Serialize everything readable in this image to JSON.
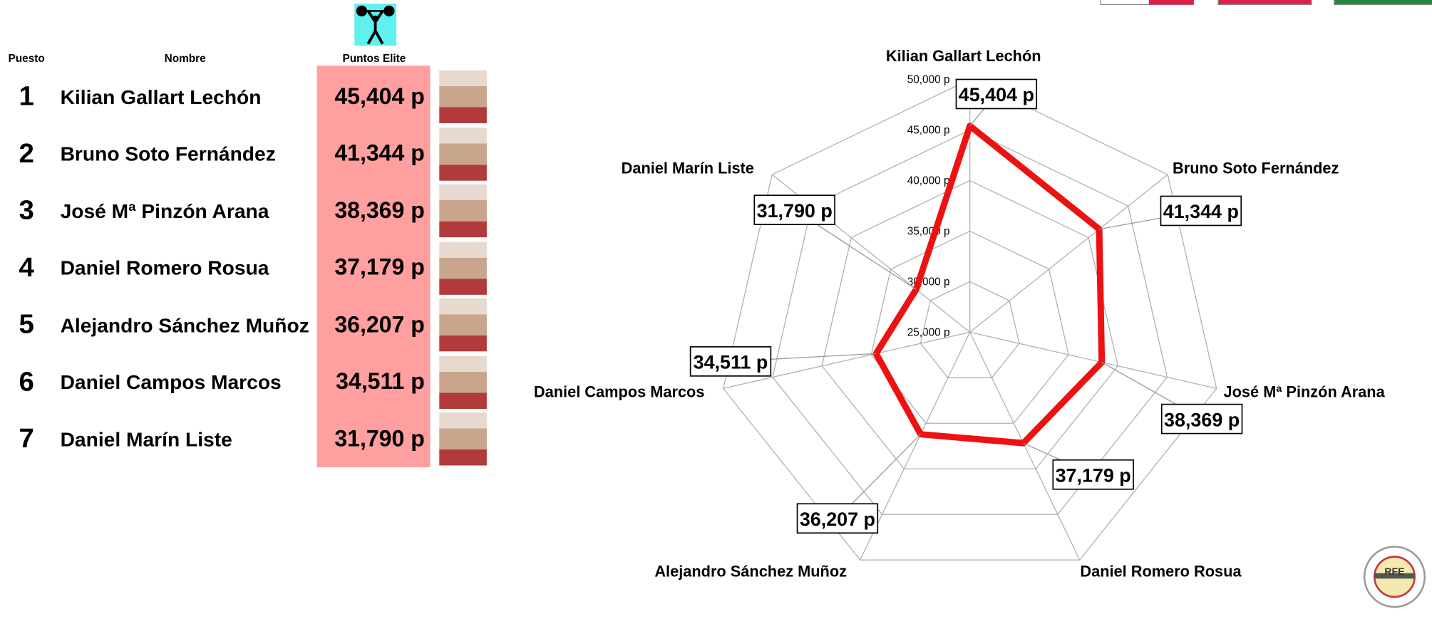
{
  "table": {
    "headers": [
      "Puesto",
      "Nombre",
      "Puntos Elite"
    ],
    "rows": [
      [
        1,
        "Kilian Gallart Lechón",
        "45,404 p"
      ],
      [
        2,
        "Bruno Soto Fernández",
        "41,344 p"
      ],
      [
        3,
        "José Mª Pinzón Arana",
        "38,369 p"
      ],
      [
        4,
        "Daniel Romero Rosua",
        "37,179 p"
      ],
      [
        5,
        "Alejandro Sánchez Muñoz",
        "36,207 p"
      ],
      [
        6,
        "Daniel Campos Marcos",
        "34,511 p"
      ],
      [
        7,
        "Daniel Marín Liste",
        "31,790 p"
      ]
    ]
  },
  "chart_data": {
    "type": "radar",
    "categories": [
      "Kilian Gallart Lechón",
      "Bruno Soto Fernández",
      "José Mª Pinzón Arana",
      "Daniel Romero Rosua",
      "Alejandro Sánchez Muñoz",
      "Daniel Campos Marcos",
      "Daniel Marín Liste"
    ],
    "values": [
      45404,
      41344,
      38369,
      37179,
      36207,
      34511,
      31790
    ],
    "value_labels": [
      "45,404 p",
      "41,344 p",
      "38,369 p",
      "37,179 p",
      "36,207 p",
      "34,511 p",
      "31,790 p"
    ],
    "color": "#ee1111",
    "ylim": [
      25000,
      50000
    ],
    "yticks": [
      {
        "value": 25000,
        "label": "25,000 p"
      },
      {
        "value": 30000,
        "label": "30,000 p"
      },
      {
        "value": 35000,
        "label": "35,000 p"
      },
      {
        "value": 40000,
        "label": "40,000 p"
      },
      {
        "value": 45000,
        "label": "45,000 p"
      },
      {
        "value": 50000,
        "label": "50,000 p"
      }
    ],
    "grid": true
  }
}
